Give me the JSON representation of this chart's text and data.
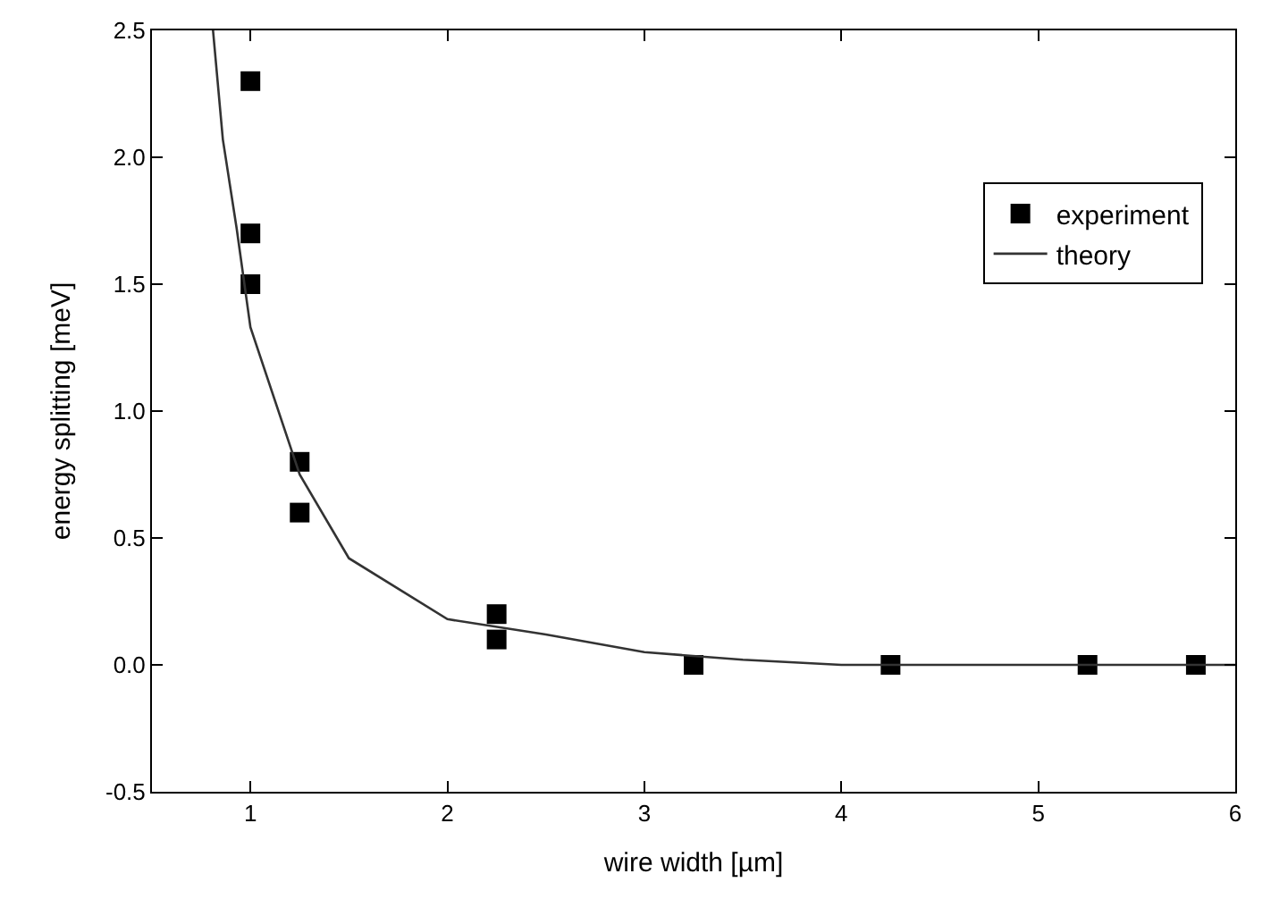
{
  "chart_data": {
    "type": "scatter",
    "xlabel": "wire width [µm]",
    "ylabel": "energy splitting [meV]",
    "xlim": [
      0.5,
      6
    ],
    "ylim": [
      -0.5,
      2.5
    ],
    "xticks": [
      1,
      2,
      3,
      4,
      5,
      6
    ],
    "yticks": [
      -0.5,
      {
        "value": 0,
        "label": "0.0"
      },
      0.5,
      {
        "value": 1,
        "label": "1.0"
      },
      1.5,
      {
        "value": 2,
        "label": "2.0"
      },
      2.5
    ],
    "legend": "top right",
    "marker": "square",
    "series": [
      {
        "name": "experiment",
        "color": "#000000",
        "x": [
          1,
          1,
          1,
          1.25,
          1.25,
          2.25,
          2.25,
          3.25,
          4.25,
          5.25,
          5.8
        ],
        "values": [
          2.3,
          1.7,
          1.5,
          0.8,
          0.6,
          0.2,
          0.1,
          0,
          0,
          0,
          0
        ]
      },
      {
        "name": "theory",
        "type": "line",
        "color": "#333333",
        "marker": "none",
        "line_style": "solid",
        "x": [
          0.81,
          0.86,
          0.93,
          1,
          1.25,
          1.5,
          2,
          2.5,
          3,
          3.5,
          4,
          5,
          6
        ],
        "values": [
          2.5,
          2.07,
          1.72,
          1.33,
          0.75,
          0.42,
          0.18,
          0.12,
          0.05,
          0.02,
          0,
          0,
          0
        ]
      }
    ]
  }
}
